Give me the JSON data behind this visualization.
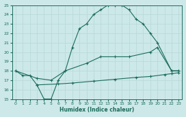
{
  "xlabel": "Humidex (Indice chaleur)",
  "bg_color": "#cce8e8",
  "line_color": "#1a6b5a",
  "grid_color": "#b8d8d8",
  "xlim": [
    -0.5,
    23.5
  ],
  "ylim": [
    15,
    25
  ],
  "xticks": [
    0,
    1,
    2,
    3,
    4,
    5,
    6,
    7,
    8,
    9,
    10,
    11,
    12,
    13,
    14,
    15,
    16,
    17,
    18,
    19,
    20,
    21,
    22,
    23
  ],
  "yticks": [
    15,
    16,
    17,
    18,
    19,
    20,
    21,
    22,
    23,
    24,
    25
  ],
  "line1_x": [
    0,
    1,
    2,
    3,
    4,
    5,
    6,
    7,
    8,
    9,
    10,
    11,
    12,
    13,
    14,
    15,
    16,
    17,
    18,
    19,
    20,
    22,
    23
  ],
  "line1_y": [
    18.0,
    17.5,
    17.5,
    16.5,
    15.0,
    15.0,
    17.0,
    18.0,
    20.5,
    22.5,
    23.0,
    24.0,
    24.5,
    25.0,
    25.0,
    25.0,
    24.5,
    23.5,
    23.0,
    22.0,
    21.0,
    18.0,
    18.0
  ],
  "line2_x": [
    0,
    3,
    5,
    7,
    10,
    12,
    14,
    16,
    19,
    20,
    22,
    23
  ],
  "line2_y": [
    18.0,
    17.2,
    17.0,
    18.0,
    18.8,
    19.5,
    19.5,
    19.5,
    20.0,
    20.5,
    18.0,
    18.0
  ],
  "line3_x": [
    3,
    6,
    8,
    11,
    14,
    17,
    19,
    21,
    22,
    23
  ],
  "line3_y": [
    16.5,
    16.6,
    16.7,
    16.9,
    17.1,
    17.3,
    17.4,
    17.6,
    17.7,
    17.8
  ]
}
